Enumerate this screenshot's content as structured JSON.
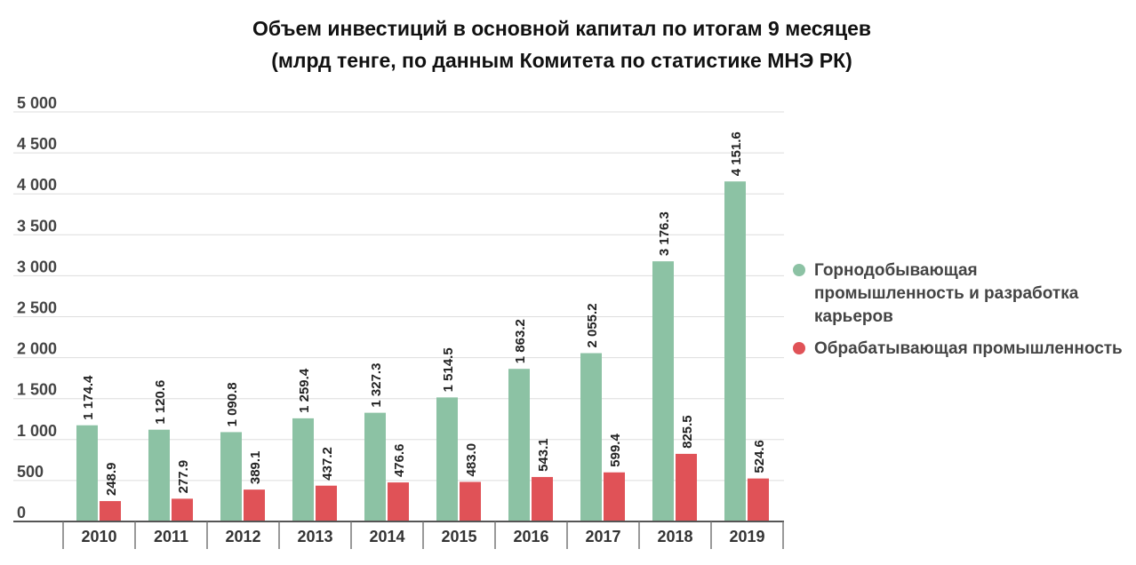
{
  "chart_data": {
    "type": "bar",
    "title": "Объем инвестиций в основной капитал по итогам 9 месяцев",
    "subtitle": "(млрд тенге, по данным Комитета по статистике МНЭ РК)",
    "categories": [
      "2010",
      "2011",
      "2012",
      "2013",
      "2014",
      "2015",
      "2016",
      "2017",
      "2018",
      "2019"
    ],
    "series": [
      {
        "name": "Горнодобывающая промышленность и разработка карьеров",
        "color": "#8cc2a4",
        "values": [
          1174.4,
          1120.6,
          1090.8,
          1259.4,
          1327.3,
          1514.5,
          1863.2,
          2055.2,
          3176.3,
          4151.6
        ],
        "labels": [
          "1 174.4",
          "1 120.6",
          "1 090.8",
          "1 259.4",
          "1 327.3",
          "1 514.5",
          "1 863.2",
          "2 055.2",
          "3 176.3",
          "4 151.6"
        ]
      },
      {
        "name": "Обрабатывающая промышленность",
        "color": "#e05257",
        "values": [
          248.9,
          277.9,
          389.1,
          437.2,
          476.6,
          483.0,
          543.1,
          599.4,
          825.5,
          524.6
        ],
        "labels": [
          "248.9",
          "277.9",
          "389.1",
          "437.2",
          "476.6",
          "483.0",
          "543.1",
          "599.4",
          "825.5",
          "524.6"
        ]
      }
    ],
    "ylim": [
      0,
      5000
    ],
    "yticks": [
      0,
      500,
      1000,
      1500,
      2000,
      2500,
      3000,
      3500,
      4000,
      4500,
      5000
    ],
    "ytick_labels": [
      "0",
      "500",
      "1 000",
      "1 500",
      "2 000",
      "2 500",
      "3 000",
      "3 500",
      "4 000",
      "4 500",
      "5 000"
    ],
    "grid": true,
    "legend": "right"
  }
}
